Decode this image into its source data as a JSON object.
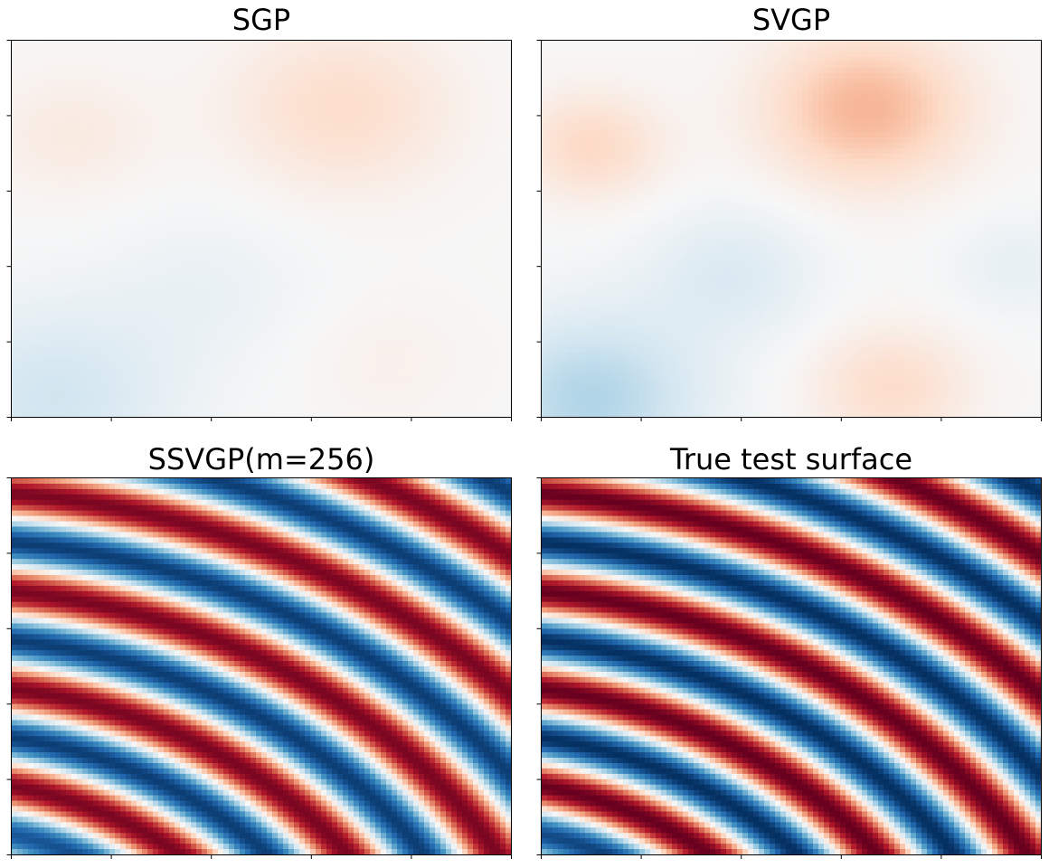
{
  "colormap": {
    "name": "RdBu_r",
    "stops": [
      "#053061",
      "#2166ac",
      "#4393c3",
      "#92c5de",
      "#d1e5f0",
      "#f7f7f7",
      "#fddbc7",
      "#f4a582",
      "#d6604d",
      "#b2182b",
      "#67001f"
    ]
  },
  "chart_data": [
    {
      "type": "heatmap",
      "title": "SGP",
      "xlabel": "",
      "ylabel": "",
      "x_ticks": 6,
      "y_ticks": 6,
      "tick_labels": false,
      "surface": "smooth-approximation",
      "value_range": [
        -1,
        1
      ],
      "value_scale": 0.25
    },
    {
      "type": "heatmap",
      "title": "SVGP",
      "xlabel": "",
      "ylabel": "",
      "x_ticks": 6,
      "y_ticks": 6,
      "tick_labels": false,
      "surface": "smooth-approximation-2",
      "value_range": [
        -1,
        1
      ],
      "value_scale": 0.4
    },
    {
      "type": "heatmap",
      "title": "SSVGP(m=256)",
      "xlabel": "",
      "ylabel": "",
      "x_ticks": 6,
      "y_ticks": 6,
      "tick_labels": false,
      "surface": "true",
      "value_range": [
        -1,
        1
      ],
      "value_scale": 0.95
    },
    {
      "type": "heatmap",
      "title": "True test surface",
      "xlabel": "",
      "ylabel": "",
      "x_ticks": 6,
      "y_ticks": 6,
      "tick_labels": false,
      "surface": "true",
      "value_range": [
        -1,
        1
      ],
      "value_scale": 1.0
    }
  ]
}
